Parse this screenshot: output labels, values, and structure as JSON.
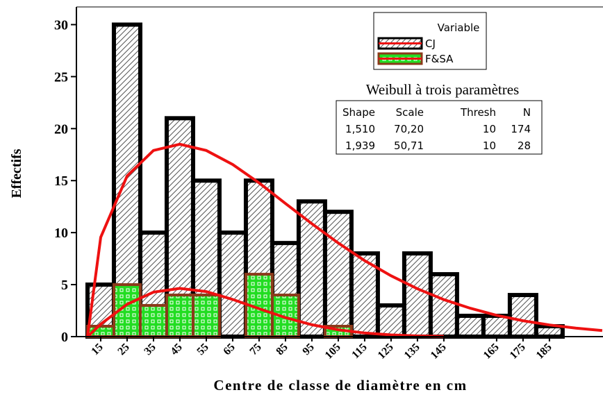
{
  "chart_data": {
    "type": "histogram",
    "x_label": "Centre de classe de diamètre en cm",
    "y_label": "Effectifs",
    "bins": [
      10,
      20,
      30,
      40,
      50,
      60,
      70,
      80,
      90,
      100,
      110,
      120,
      130,
      140,
      150,
      160,
      170,
      180,
      190
    ],
    "series": [
      {
        "name": "CJ",
        "color": "#ffffff",
        "edge_color": "#000000",
        "fit_color": "#ee1111",
        "values": [
          5,
          30,
          10,
          21,
          15,
          10,
          15,
          9,
          13,
          12,
          8,
          3,
          8,
          6,
          2,
          2,
          4,
          1
        ],
        "fit_x": [
          10,
          15,
          25,
          35,
          45,
          55,
          65,
          75,
          85,
          95,
          105,
          115,
          125,
          135,
          145,
          155,
          165,
          175,
          185,
          195,
          205
        ],
        "fit_y": [
          0,
          9.56,
          15.45,
          17.9,
          18.5,
          17.9,
          16.55,
          14.78,
          12.8,
          10.86,
          9.0,
          7.31,
          5.85,
          4.6,
          3.56,
          2.73,
          2.05,
          1.53,
          1.12,
          0.82,
          0.58
        ]
      },
      {
        "name": "F&SA",
        "color": "#22dd22",
        "edge_color": "#8b3a1a",
        "fit_color": "#ee1111",
        "values": [
          1,
          5,
          3,
          4,
          4,
          0,
          6,
          4,
          0,
          1,
          0,
          0,
          0,
          0,
          0,
          0,
          0,
          0
        ],
        "fit_x": [
          10,
          15,
          25,
          35,
          45,
          55,
          65,
          75,
          85,
          95,
          105,
          115,
          125,
          135,
          145
        ],
        "fit_y": [
          0,
          1.2,
          3.11,
          4.28,
          4.64,
          4.33,
          3.58,
          2.68,
          1.83,
          1.14,
          0.66,
          0.35,
          0.17,
          0.07,
          0.03
        ]
      }
    ],
    "xlim": [
      5.8,
      205.3
    ],
    "xticks": [
      15,
      25,
      35,
      45,
      55,
      65,
      75,
      85,
      95,
      105,
      115,
      125,
      135,
      145,
      165,
      175,
      185
    ],
    "ylim": [
      0,
      31.7
    ],
    "yticks": [
      0,
      5,
      10,
      15,
      20,
      25,
      30
    ],
    "legend_title": "Variable",
    "legend_position": "upper right",
    "fit_table": {
      "title": "Weibull à trois paramètres",
      "header": [
        "Shape",
        "Scale",
        "Thresh",
        "N"
      ],
      "rows": [
        [
          "1,510",
          "70,20",
          "10",
          "174"
        ],
        [
          "1,939",
          "50,71",
          "10",
          "28"
        ]
      ]
    }
  }
}
